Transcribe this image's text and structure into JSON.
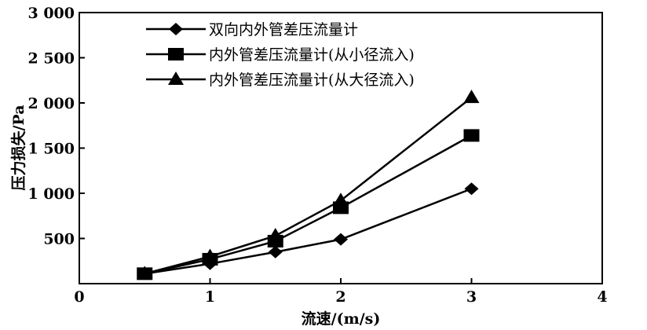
{
  "chart_data": {
    "type": "line",
    "title": "",
    "xlabel": "流速/(m/s)",
    "ylabel": "压力损失/Pa",
    "xlim": [
      0,
      4
    ],
    "ylim": [
      0,
      3000
    ],
    "x_ticks": [
      {
        "value": 0,
        "label": "0"
      },
      {
        "value": 1,
        "label": "1"
      },
      {
        "value": 2,
        "label": "2"
      },
      {
        "value": 3,
        "label": "3"
      },
      {
        "value": 4,
        "label": "4"
      }
    ],
    "y_ticks": [
      {
        "value": 500,
        "label": "500"
      },
      {
        "value": 1000,
        "label": "1 000"
      },
      {
        "value": 1500,
        "label": "1 500"
      },
      {
        "value": 2000,
        "label": "2 000"
      },
      {
        "value": 2500,
        "label": "2 500"
      },
      {
        "value": 3000,
        "label": "3 000"
      }
    ],
    "grid": false,
    "legend_position": "top-center",
    "series": [
      {
        "name": "双向内外管差压流量计",
        "marker": "diamond",
        "color": "#000000",
        "x": [
          0.5,
          1,
          1.5,
          2,
          3
        ],
        "y": [
          110,
          220,
          350,
          490,
          1050
        ]
      },
      {
        "name": "内外管差压流量计(从小径流入)",
        "marker": "square",
        "color": "#000000",
        "x": [
          0.5,
          1,
          1.5,
          2,
          3
        ],
        "y": [
          110,
          270,
          470,
          840,
          1640
        ]
      },
      {
        "name": "内外管差压流量计(从大径流入)",
        "marker": "triangle",
        "color": "#000000",
        "x": [
          0.5,
          1,
          1.5,
          2,
          3
        ],
        "y": [
          110,
          300,
          530,
          920,
          2060
        ]
      }
    ]
  }
}
